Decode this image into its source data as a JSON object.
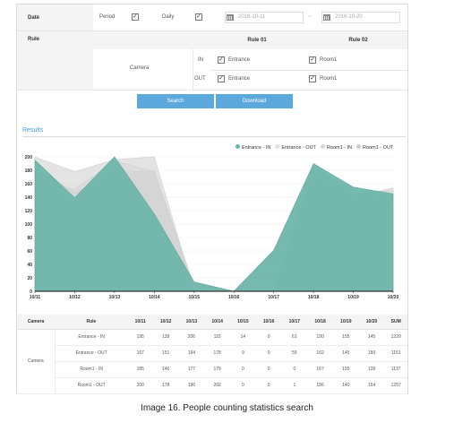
{
  "filters": {
    "date_label": "Date",
    "period_label": "Period",
    "daily_label": "Daily",
    "date_from": "2016-10-11",
    "date_sep": "~",
    "date_to": "2016-10-20",
    "rule_label": "Rule",
    "rule01": "Rule 01",
    "rule02": "Rule 02",
    "camera_label": "Camera",
    "in_label": "IN",
    "out_label": "OUT",
    "entrance": "Entrance",
    "room": "Room1"
  },
  "buttons": {
    "search": "Search",
    "download": "Download"
  },
  "results_title": "Results",
  "legend": [
    {
      "name": "Entrance - IN",
      "color": "#6fb5aa"
    },
    {
      "name": "Entrance - OUT",
      "color": "#e2e2e2"
    },
    {
      "name": "Room1 - IN",
      "color": "#d6d6d6"
    },
    {
      "name": "Room1 - OUT",
      "color": "#cccccc"
    }
  ],
  "chart_data": {
    "type": "area",
    "categories": [
      "10/11",
      "10/12",
      "10/13",
      "10/14",
      "10/15",
      "10/16",
      "10/17",
      "10/18",
      "10/19",
      "10/20"
    ],
    "ylim": [
      0,
      200
    ],
    "yticks": [
      0,
      20,
      40,
      60,
      80,
      100,
      120,
      140,
      160,
      180,
      200
    ],
    "grid": true,
    "legend_position": "top-right",
    "series": [
      {
        "name": "Entrance - OUT",
        "values": [
          167,
          151,
          194,
          178,
          9,
          0,
          55,
          162,
          145,
          150
        ]
      },
      {
        "name": "Room1 - IN",
        "values": [
          185,
          146,
          177,
          179,
          0,
          0,
          0,
          167,
          155,
          128
        ]
      },
      {
        "name": "Room1 - OUT",
        "values": [
          200,
          178,
          196,
          202,
          0,
          0,
          1,
          186,
          140,
          154
        ]
      },
      {
        "name": "Entrance - IN",
        "values": [
          195,
          139,
          206,
          115,
          14,
          0,
          61,
          190,
          155,
          145
        ]
      }
    ]
  },
  "table": {
    "headers": [
      "Camera",
      "Rule",
      "10/11",
      "10/12",
      "10/13",
      "10/14",
      "10/15",
      "10/16",
      "10/17",
      "10/18",
      "10/19",
      "10/20",
      "SUM"
    ],
    "camera": "Camera",
    "rows": [
      {
        "rule": "Entrance - IN",
        "values": [
          "195",
          "139",
          "206",
          "115",
          "14",
          "0",
          "61",
          "190",
          "155",
          "145",
          "1220"
        ]
      },
      {
        "rule": "Entrance - OUT",
        "values": [
          "167",
          "151",
          "194",
          "178",
          "9",
          "0",
          "55",
          "162",
          "145",
          "150",
          "1151"
        ]
      },
      {
        "rule": "Room1 - IN",
        "values": [
          "185",
          "146",
          "177",
          "179",
          "0",
          "0",
          "0",
          "167",
          "155",
          "128",
          "1137"
        ]
      },
      {
        "rule": "Room1 - OUT",
        "values": [
          "200",
          "178",
          "196",
          "202",
          "0",
          "0",
          "1",
          "186",
          "140",
          "154",
          "1257"
        ]
      }
    ]
  },
  "caption": "Image 16. People counting statistics search"
}
